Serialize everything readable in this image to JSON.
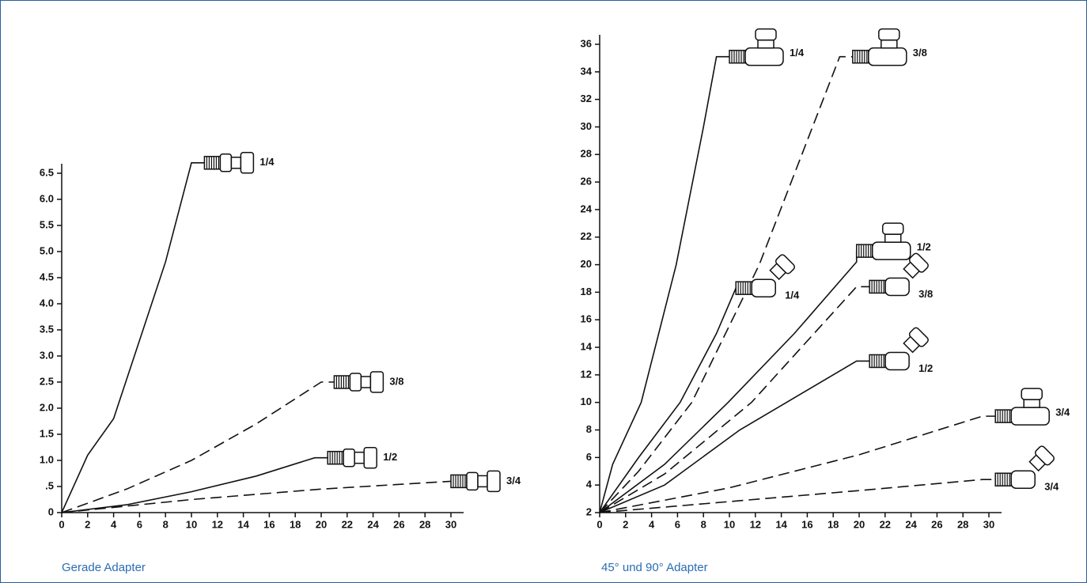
{
  "chart_data": [
    {
      "type": "line",
      "title": "Gerade Adapter",
      "xlim": [
        0,
        30
      ],
      "xticks": [
        0,
        2,
        4,
        6,
        8,
        10,
        12,
        14,
        16,
        18,
        20,
        22,
        24,
        26,
        28,
        30
      ],
      "ylim": [
        0,
        6.5
      ],
      "yticks": [
        0,
        {
          "value": 0.5,
          "label": ".5"
        },
        {
          "value": 1,
          "label": "1.0"
        },
        1.5,
        {
          "value": 2,
          "label": "2.0"
        },
        2.5,
        {
          "value": 3,
          "label": "3.0"
        },
        3.5,
        {
          "value": 4,
          "label": "4.0"
        },
        4.5,
        {
          "value": 5,
          "label": "5.0"
        },
        5.5,
        {
          "value": 6,
          "label": "6.0"
        },
        6.5
      ],
      "series": [
        {
          "name": "1/4",
          "style": "solid",
          "icon": "straight",
          "color": "#111111",
          "x": [
            0,
            2,
            4,
            6,
            8,
            10,
            11
          ],
          "values": [
            0,
            1.1,
            1.8,
            3.3,
            4.8,
            6.7,
            6.7
          ]
        },
        {
          "name": "3/8",
          "style": "dashed",
          "icon": "straight",
          "color": "#111111",
          "x": [
            0,
            5,
            10,
            15,
            20,
            21
          ],
          "values": [
            0,
            0.45,
            1.0,
            1.7,
            2.5,
            2.5
          ]
        },
        {
          "name": "1/2",
          "style": "solid",
          "icon": "straight",
          "color": "#111111",
          "x": [
            0,
            5,
            10,
            15,
            19.5,
            20.5
          ],
          "values": [
            0,
            0.15,
            0.4,
            0.7,
            1.05,
            1.05
          ]
        },
        {
          "name": "3/4",
          "style": "dashed",
          "icon": "straight",
          "color": "#111111",
          "x": [
            0,
            10,
            20,
            30
          ],
          "values": [
            0,
            0.25,
            0.45,
            0.6
          ]
        }
      ]
    },
    {
      "type": "line",
      "title": "45° und 90° Adapter",
      "xlim": [
        0,
        30
      ],
      "xticks": [
        0,
        2,
        4,
        6,
        8,
        10,
        12,
        14,
        16,
        18,
        20,
        22,
        24,
        26,
        28,
        30
      ],
      "ylim": [
        2,
        36
      ],
      "yticks": [
        2,
        4,
        6,
        8,
        10,
        12,
        14,
        16,
        18,
        20,
        22,
        24,
        26,
        28,
        30,
        32,
        34,
        36
      ],
      "series": [
        {
          "name": "1/4",
          "style": "solid",
          "icon": "90",
          "color": "#111111",
          "x": [
            0,
            1,
            3.2,
            5.9,
            8,
            9,
            10
          ],
          "values": [
            2,
            5.5,
            10,
            20,
            30,
            35.1,
            35.1
          ]
        },
        {
          "name": "3/8",
          "style": "dashed",
          "icon": "90",
          "color": "#111111",
          "x": [
            0,
            3,
            7.1,
            12.3,
            18.5,
            19.5
          ],
          "values": [
            2,
            5,
            10,
            20,
            35.1,
            35.1
          ]
        },
        {
          "name": "1/4",
          "style": "solid",
          "icon": "45",
          "color": "#111111",
          "x": [
            0,
            3,
            6.2,
            9,
            10.5
          ],
          "values": [
            2,
            6,
            10,
            15,
            18.3
          ]
        },
        {
          "name": "1/2",
          "style": "solid",
          "icon": "90",
          "color": "#111111",
          "x": [
            0,
            5,
            9.9,
            15,
            19.8,
            19.8
          ],
          "values": [
            2,
            5.5,
            10,
            15,
            20.2,
            21
          ]
        },
        {
          "name": "3/8",
          "style": "dashed",
          "icon": "45",
          "color": "#111111",
          "x": [
            0,
            5,
            11.7,
            19.8,
            20.8
          ],
          "values": [
            2,
            4.8,
            10,
            18.4,
            18.4
          ]
        },
        {
          "name": "1/2",
          "style": "solid",
          "icon": "45",
          "color": "#111111",
          "x": [
            0,
            5,
            10.8,
            19.8,
            20.8
          ],
          "values": [
            2,
            4,
            8,
            13,
            13
          ]
        },
        {
          "name": "3/4",
          "style": "dashed",
          "icon": "90",
          "color": "#111111",
          "x": [
            0,
            10,
            20,
            29.5,
            30.5
          ],
          "values": [
            2,
            3.8,
            6.2,
            9,
            9
          ]
        },
        {
          "name": "3/4",
          "style": "dashed",
          "icon": "45",
          "color": "#111111",
          "x": [
            0,
            10,
            20,
            29.5,
            30.5
          ],
          "values": [
            2,
            2.8,
            3.6,
            4.4,
            4.4
          ]
        }
      ]
    }
  ]
}
